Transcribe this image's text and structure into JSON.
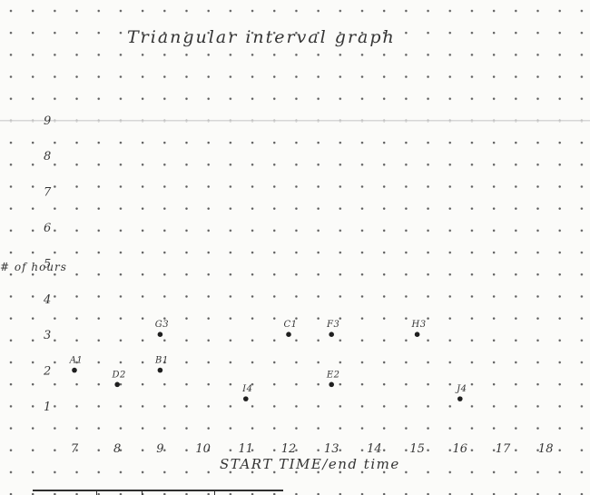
{
  "chart_data": {
    "type": "scatter",
    "title": "Triangular interval graph",
    "ylabel": "# of hours",
    "xlabel": "START TIME/end time",
    "x_ticks": [
      "7",
      "8",
      "9",
      "10",
      "11",
      "12",
      "13",
      "14",
      "15",
      "16",
      "17",
      "18"
    ],
    "y_ticks": [
      "1",
      "2",
      "3",
      "4",
      "5",
      "6",
      "7",
      "8",
      "9"
    ],
    "xlim": [
      6,
      19
    ],
    "ylim": [
      0,
      10
    ],
    "points": [
      {
        "label": "A1",
        "x": 7,
        "y": 2
      },
      {
        "label": "D2",
        "x": 8,
        "y": 1.6
      },
      {
        "label": "G3",
        "x": 9,
        "y": 3
      },
      {
        "label": "B1",
        "x": 9,
        "y": 2
      },
      {
        "label": "C1",
        "x": 12,
        "y": 3
      },
      {
        "label": "F3",
        "x": 13,
        "y": 3
      },
      {
        "label": "H3",
        "x": 15,
        "y": 3
      },
      {
        "label": "E2",
        "x": 13,
        "y": 1.6
      },
      {
        "label": "I4",
        "x": 11,
        "y": 1.2
      },
      {
        "label": "J4",
        "x": 16,
        "y": 1.2
      }
    ]
  }
}
